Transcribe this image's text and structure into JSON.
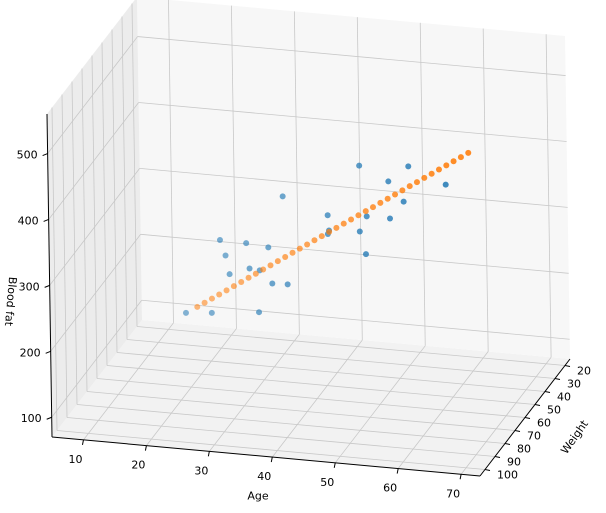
{
  "chart_data": {
    "type": "scatter3d",
    "xlabel": "Age",
    "ylabel": "Weight",
    "zlabel": "Blood fat",
    "xlim": [
      5,
      73
    ],
    "ylim": [
      15,
      105
    ],
    "zlim": [
      70,
      560
    ],
    "xticks": [
      10,
      20,
      30,
      40,
      50,
      60,
      70
    ],
    "yticks": [
      20,
      30,
      40,
      50,
      60,
      70,
      80,
      90,
      100
    ],
    "zticks": [
      100,
      200,
      300,
      400,
      500
    ],
    "grid": true,
    "series": [
      {
        "color": "#1f77b4",
        "x": [
          25,
          28.3,
          35,
          30.9,
          29,
          30.1,
          31.5,
          33.6,
          34.2,
          34.4,
          36.7,
          38,
          35.8,
          42.1,
          43.9,
          42.9,
          44.8,
          47.5,
          47.5,
          49.4,
          49.4,
          51.2,
          52.6,
          51.8,
          56.9
        ],
        "y": [
          95,
          90,
          85,
          88,
          80,
          92,
          75,
          85,
          70,
          80,
          82,
          75,
          65,
          60,
          70,
          65,
          45,
          55,
          62,
          68,
          45,
          55,
          50,
          40,
          35
        ],
        "z": [
          256,
          249,
          246,
          306,
          317,
          365,
          328,
          311,
          314,
          299,
          285,
          271,
          383,
          350,
          348,
          332,
          398,
          343,
          334,
          313,
          378,
          343,
          360,
          393,
          360
        ]
      },
      {
        "color": "#ff7f0e",
        "x": [
          26,
          27,
          28,
          29,
          30,
          31,
          32,
          33,
          34,
          35,
          36,
          37,
          38,
          39,
          40,
          41,
          42,
          43,
          44,
          45,
          46,
          47,
          48,
          49,
          50,
          51,
          52,
          53,
          54,
          55,
          56,
          57,
          58,
          59,
          60,
          61,
          62,
          63
        ],
        "y": [
          90.0,
          88.9,
          87.8,
          86.8,
          85.7,
          84.6,
          83.5,
          82.4,
          81.4,
          80.3,
          79.2,
          78.1,
          77.0,
          75.9,
          74.9,
          73.8,
          72.7,
          71.6,
          70.5,
          69.5,
          68.4,
          67.3,
          66.2,
          65.1,
          64.1,
          63.0,
          61.9,
          60.8,
          59.7,
          58.6,
          57.6,
          56.5,
          55.4,
          54.3,
          53.2,
          52.2,
          51.1,
          50.0
        ],
        "z": [
          256.0,
          261.1,
          266.1,
          271.2,
          276.2,
          281.3,
          286.3,
          291.4,
          296.4,
          301.5,
          306.5,
          311.6,
          316.6,
          321.7,
          326.8,
          331.8,
          336.9,
          341.9,
          347.0,
          352.0,
          357.1,
          362.1,
          367.2,
          372.2,
          377.3,
          382.4,
          387.4,
          392.5,
          397.5,
          402.6,
          407.6,
          412.7,
          417.7,
          422.8,
          427.8,
          432.9,
          437.9,
          443.0
        ]
      }
    ]
  }
}
